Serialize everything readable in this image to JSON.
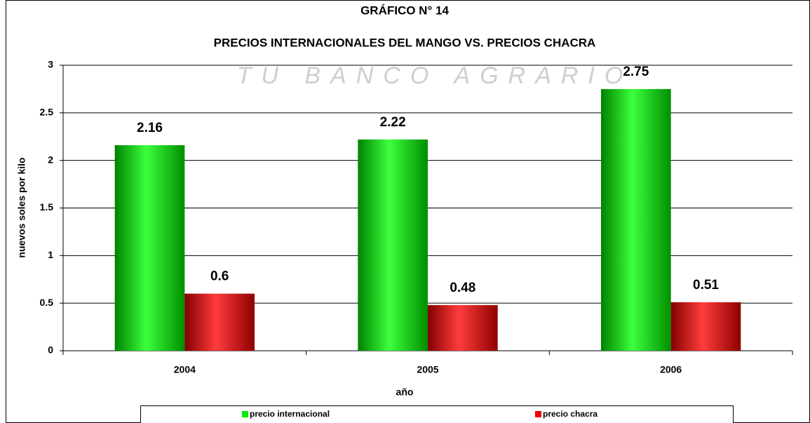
{
  "chart_data": {
    "type": "bar",
    "title": "GRÁFICO N° 14",
    "subtitle": "PRECIOS INTERNACIONALES DEL MANGO VS. PRECIOS CHACRA",
    "watermark": "TU BANCO AGRARIO",
    "x_label": "año",
    "y_label": "nuevos soles por kilo",
    "categories": [
      "2004",
      "2005",
      "2006"
    ],
    "series": [
      {
        "name": "precio internacional",
        "color": "#00ee00",
        "values": [
          2.16,
          2.22,
          2.75
        ]
      },
      {
        "name": "precio chacra",
        "color": "#ee0000",
        "values": [
          0.6,
          0.48,
          0.51
        ]
      }
    ],
    "ylim": [
      0,
      3
    ],
    "yticks": [
      0,
      0.5,
      1,
      1.5,
      2,
      2.5,
      3
    ],
    "grid": true,
    "legend": "bottom"
  }
}
